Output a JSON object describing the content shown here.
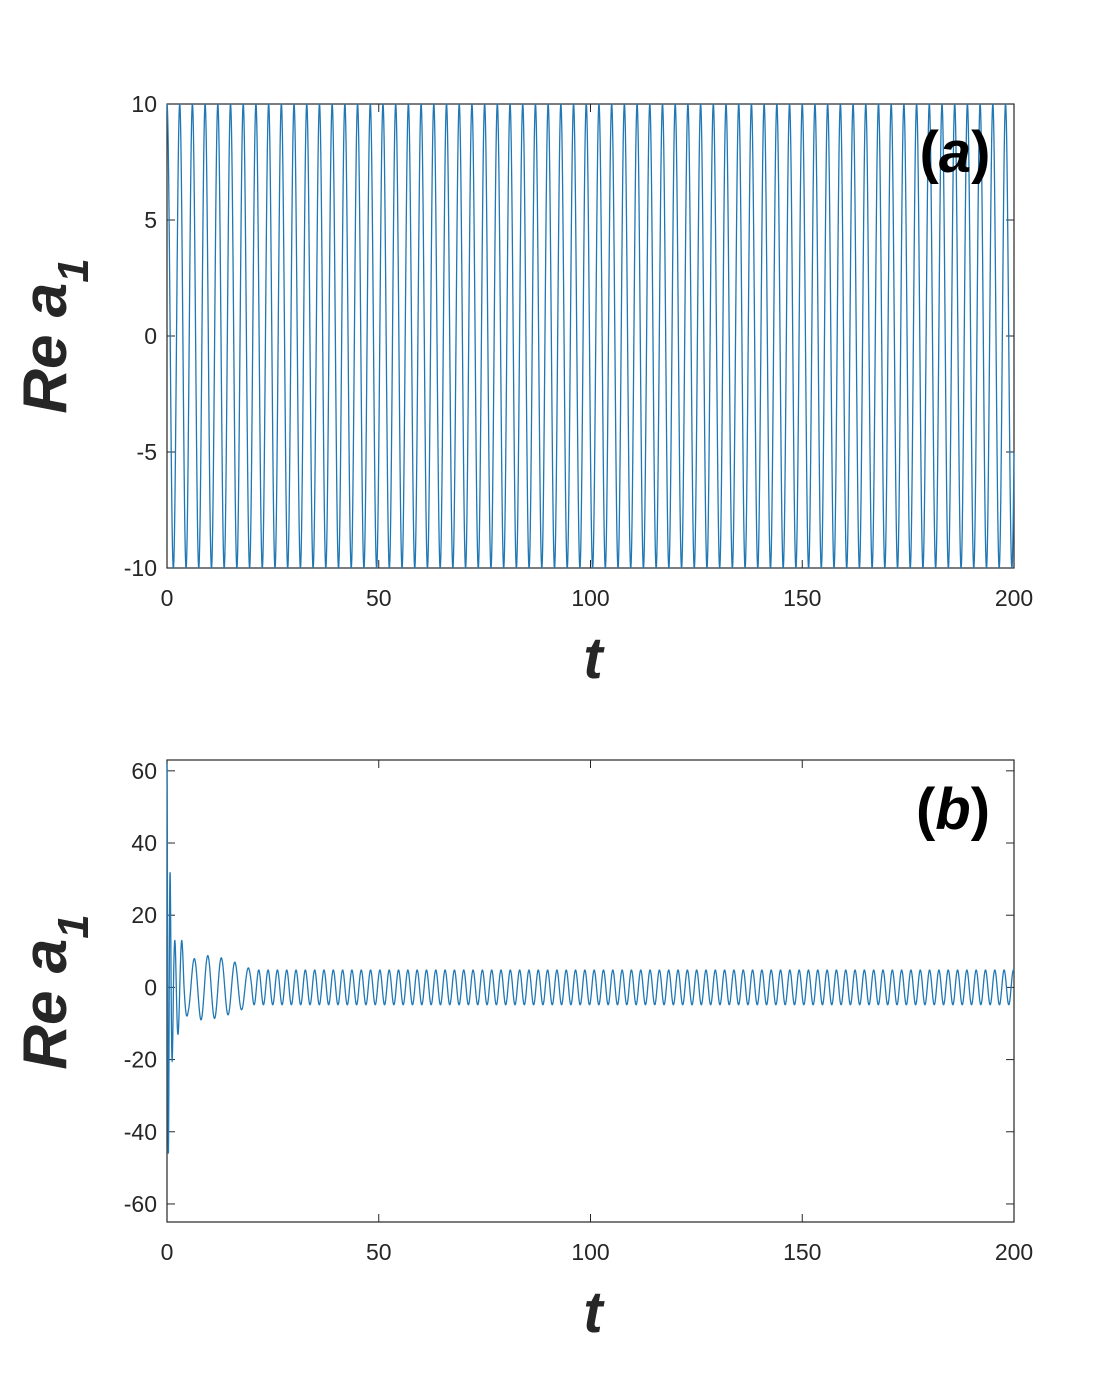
{
  "colors": {
    "series": "#1f77b4",
    "axis": "#262626",
    "background": "#ffffff"
  },
  "chart_data": [
    {
      "type": "line",
      "panel_label": "(a)",
      "xlabel": "t",
      "ylabel": {
        "main": "Re a",
        "subscript": "1"
      },
      "xlim": [
        0,
        200
      ],
      "ylim": [
        -10,
        10
      ],
      "xticks": [
        "0",
        "50",
        "100",
        "150",
        "200"
      ],
      "yticks": [
        "-10",
        "-5",
        "0",
        "5",
        "10"
      ],
      "grid": false,
      "series": [
        {
          "kind": "sinusoid",
          "amplitude": 10,
          "period": 3.0,
          "phase": 1.5708,
          "x_start": 0,
          "x_end": 200
        }
      ]
    },
    {
      "type": "line",
      "panel_label": "(b)",
      "xlabel": "t",
      "ylabel": {
        "main": "Re a",
        "subscript": "1"
      },
      "xlim": [
        0,
        200
      ],
      "ylim": [
        -65,
        63
      ],
      "xticks": [
        "0",
        "50",
        "100",
        "150",
        "200"
      ],
      "yticks": [
        "-60",
        "-40",
        "-20",
        "0",
        "20",
        "40",
        "60"
      ],
      "grid": false,
      "series": [
        {
          "kind": "damped-oscillation",
          "initial_amplitude": 62,
          "initial_period": 0.6,
          "beat_envelope": {
            "t": [
              5,
              8,
              12,
              16,
              20
            ],
            "amplitude": [
              7,
              9,
              8.5,
              7,
              5
            ]
          },
          "steady_amplitude": 4.8,
          "steady_period": 2.2,
          "x_start": 0,
          "x_end": 200
        }
      ]
    }
  ]
}
